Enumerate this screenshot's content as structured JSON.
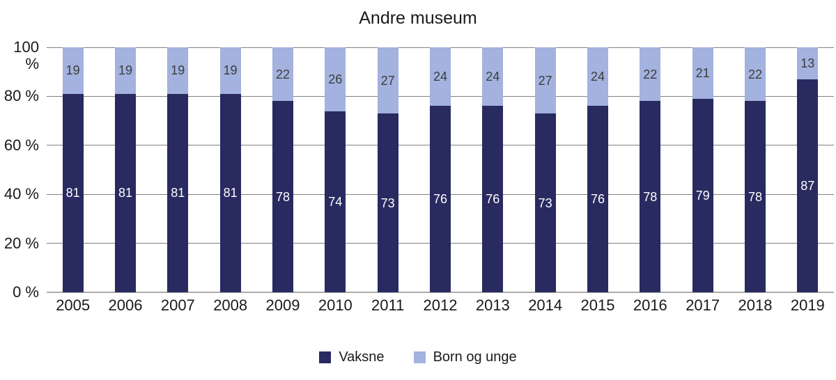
{
  "chart_data": {
    "type": "bar",
    "stacked": true,
    "title": "Andre museum",
    "xlabel": "",
    "ylabel": "",
    "ylim": [
      0,
      100
    ],
    "grid": true,
    "legend_position": "bottom",
    "categories": [
      "2005",
      "2006",
      "2007",
      "2008",
      "2009",
      "2010",
      "2011",
      "2012",
      "2013",
      "2014",
      "2015",
      "2016",
      "2017",
      "2018",
      "2019"
    ],
    "series": [
      {
        "name": "Vaksne",
        "color": "#282a60",
        "label_color": "#ffffff",
        "values": [
          81,
          81,
          81,
          81,
          78,
          74,
          73,
          76,
          76,
          73,
          76,
          78,
          79,
          78,
          87
        ]
      },
      {
        "name": "Born og unge",
        "color": "#a3b2de",
        "label_color": "#3d3d3d",
        "values": [
          19,
          19,
          19,
          19,
          22,
          26,
          27,
          24,
          24,
          27,
          24,
          22,
          21,
          22,
          13
        ]
      }
    ],
    "y_ticks": [
      {
        "value": 0,
        "label": "0 %"
      },
      {
        "value": 20,
        "label": "20 %"
      },
      {
        "value": 40,
        "label": "40 %"
      },
      {
        "value": 60,
        "label": "60 %"
      },
      {
        "value": 80,
        "label": "80 %"
      },
      {
        "value": 100,
        "label": "100 %"
      }
    ],
    "style": {
      "gridline_color": "#7f7f7f",
      "axis_line_color": "#acacac",
      "text_color": "#1a1a1a"
    }
  }
}
